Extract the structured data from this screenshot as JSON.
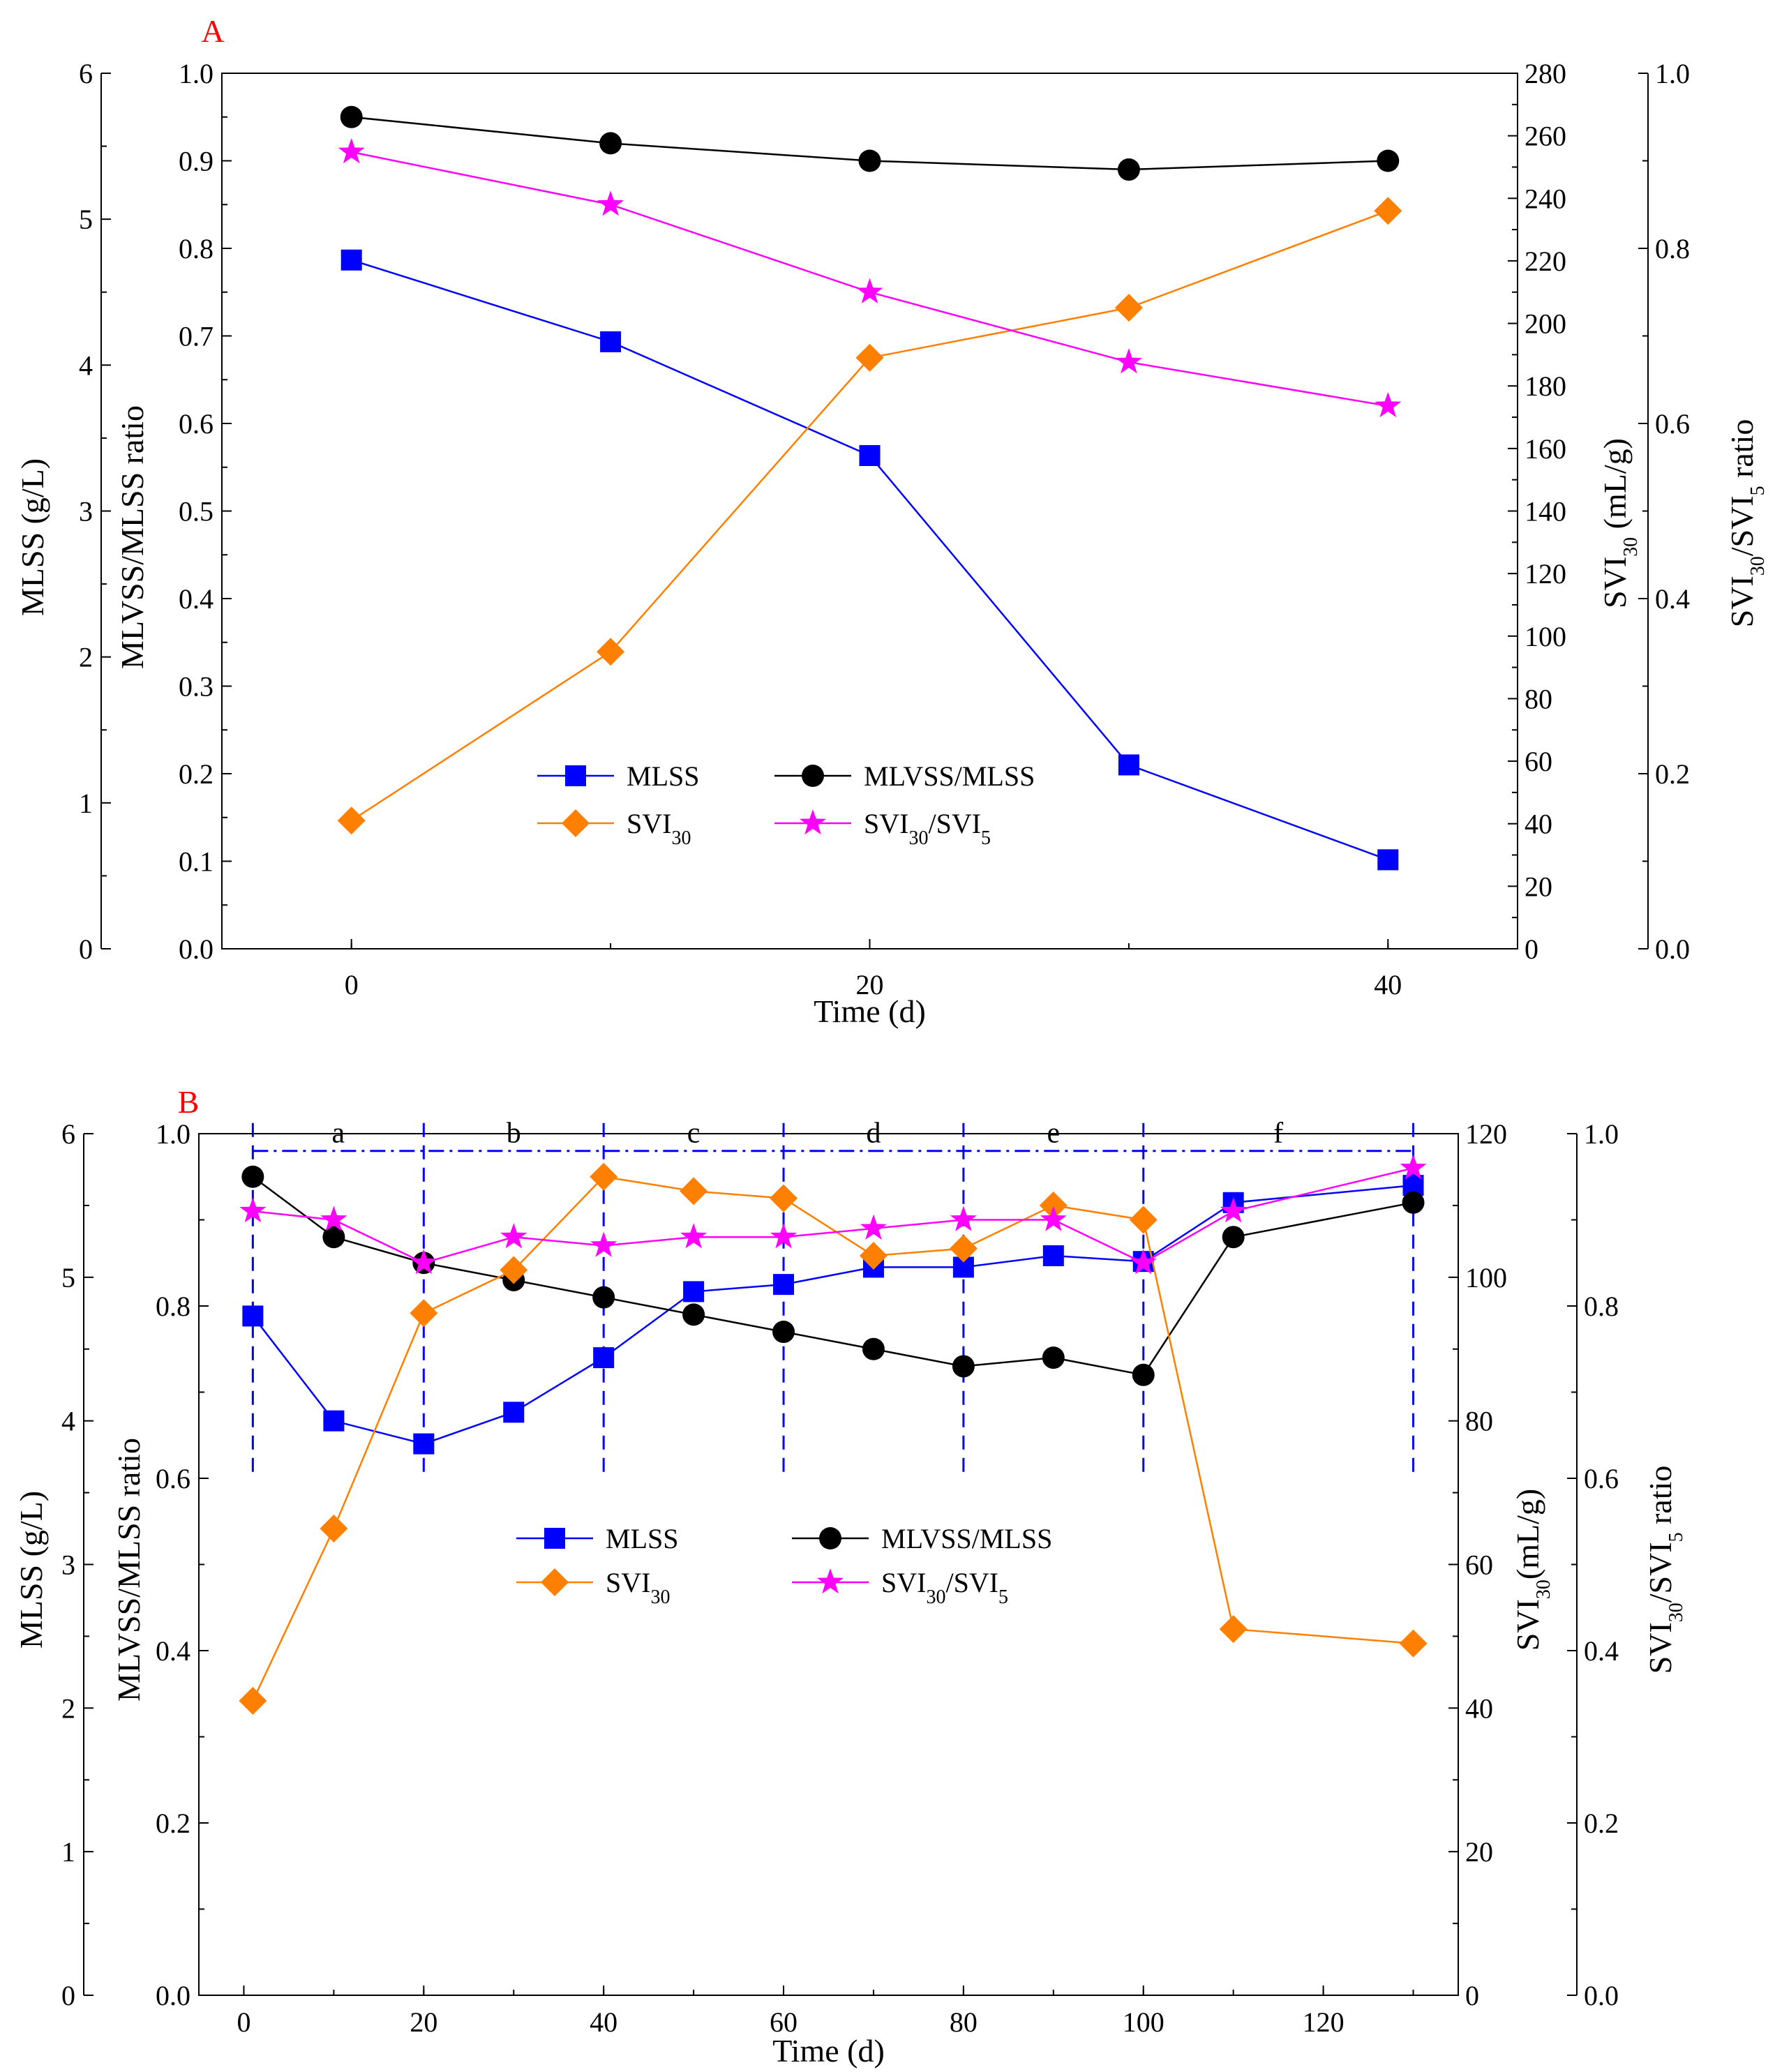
{
  "colors": {
    "mlss": "#0000ff",
    "ratio": "#000000",
    "svi": "#ff7f00",
    "svi_ratio": "#ff00ff",
    "panel_tag": "#ff0000",
    "phase_lines": "#0000ff"
  },
  "chart_data": [
    {
      "type": "line",
      "panel": "A",
      "xlabel": "Time (d)",
      "x_ticks": [
        "0",
        "20",
        "40"
      ],
      "xlim": [
        -5,
        45
      ],
      "axes": {
        "left1": {
          "label": "MLSS (g/L)",
          "lim": [
            0,
            6
          ],
          "ticks": [
            "0",
            "1",
            "2",
            "3",
            "4",
            "5",
            "6"
          ]
        },
        "left2": {
          "label": "MLVSS/MLSS ratio",
          "lim": [
            0,
            1
          ],
          "ticks": [
            "0.0",
            "0.1",
            "0.2",
            "0.3",
            "0.4",
            "0.5",
            "0.6",
            "0.7",
            "0.8",
            "0.9",
            "1.0"
          ]
        },
        "right1": {
          "label_main": "SVI",
          "label_sub": "30",
          "label_tail": " (mL/g)",
          "lim": [
            0,
            280
          ],
          "ticks": [
            "0",
            "20",
            "40",
            "60",
            "80",
            "100",
            "120",
            "140",
            "160",
            "180",
            "200",
            "220",
            "240",
            "260",
            "280"
          ]
        },
        "right2": {
          "label_main": "SVI",
          "label_sub1": "30",
          "label_mid": "/SVI",
          "label_sub2": "5",
          "label_tail": " ratio",
          "lim": [
            0,
            1
          ],
          "ticks": [
            "0.0",
            "0.2",
            "0.4",
            "0.6",
            "0.8",
            "1.0"
          ]
        }
      },
      "series": [
        {
          "name": "MLSS",
          "key": "mlss",
          "axis": "left1",
          "marker": "square",
          "x": [
            0,
            10,
            20,
            30,
            40
          ],
          "values": [
            4.72,
            4.16,
            3.38,
            1.26,
            0.61
          ]
        },
        {
          "name": "MLVSS/MLSS",
          "key": "ratio",
          "axis": "left2",
          "marker": "circle",
          "x": [
            0,
            10,
            20,
            30,
            40
          ],
          "values": [
            0.95,
            0.92,
            0.9,
            0.89,
            0.9
          ]
        },
        {
          "name": "SVI",
          "sub": "30",
          "key": "svi",
          "axis": "right1",
          "marker": "diamond",
          "x": [
            0,
            10,
            20,
            30,
            40
          ],
          "values": [
            41,
            95,
            189,
            205,
            236
          ]
        },
        {
          "name": "SVI",
          "sub": "30",
          "name2": "/SVI",
          "sub2": "5",
          "key": "svi_ratio",
          "axis": "right2",
          "marker": "star",
          "x": [
            0,
            10,
            20,
            30,
            40
          ],
          "values": [
            0.91,
            0.85,
            0.75,
            0.67,
            0.62
          ]
        }
      ]
    },
    {
      "type": "line",
      "panel": "B",
      "xlabel": "Time (d)",
      "x_ticks": [
        "0",
        "20",
        "40",
        "60",
        "80",
        "100",
        "120"
      ],
      "xlim": [
        -5,
        135
      ],
      "axes": {
        "left1": {
          "label": "MLSS (g/L)",
          "lim": [
            0,
            6
          ],
          "ticks": [
            "0",
            "1",
            "2",
            "3",
            "4",
            "5",
            "6"
          ]
        },
        "left2": {
          "label": "MLVSS/MLSS ratio",
          "lim": [
            0,
            1
          ],
          "ticks": [
            "0.0",
            "0.2",
            "0.4",
            "0.6",
            "0.8",
            "1.0"
          ]
        },
        "right1": {
          "label_main": "SVI",
          "label_sub": "30",
          "label_tail": "(mL/g)",
          "lim": [
            0,
            120
          ],
          "ticks": [
            "0",
            "20",
            "40",
            "60",
            "80",
            "100",
            "120"
          ]
        },
        "right2": {
          "label_main": "SVI",
          "label_sub1": "30",
          "label_mid": "/SVI",
          "label_sub2": "5",
          "label_tail": " ratio",
          "lim": [
            0,
            1
          ],
          "ticks": [
            "0.0",
            "0.2",
            "0.4",
            "0.6",
            "0.8",
            "1.0"
          ]
        }
      },
      "phases": {
        "boundaries": [
          1,
          20,
          40,
          60,
          80,
          100,
          130
        ],
        "labels": [
          "a",
          "b",
          "c",
          "d",
          "e",
          "f"
        ],
        "y_top": 0.98,
        "y_bottom": 0.6
      },
      "series": [
        {
          "name": "MLSS",
          "key": "mlss",
          "axis": "left1",
          "marker": "square",
          "x": [
            1,
            10,
            20,
            30,
            40,
            50,
            60,
            70,
            80,
            90,
            100,
            110,
            130
          ],
          "values": [
            4.73,
            4.0,
            3.84,
            4.06,
            4.44,
            4.9,
            4.95,
            5.07,
            5.07,
            5.15,
            5.11,
            5.52,
            5.64
          ]
        },
        {
          "name": "MLVSS/MLSS",
          "key": "ratio",
          "axis": "left2",
          "marker": "circle",
          "x": [
            1,
            10,
            20,
            30,
            40,
            50,
            60,
            70,
            80,
            90,
            100,
            110,
            130
          ],
          "values": [
            0.95,
            0.88,
            0.85,
            0.83,
            0.81,
            0.79,
            0.77,
            0.75,
            0.73,
            0.74,
            0.72,
            0.88,
            0.92
          ]
        },
        {
          "name": "SVI",
          "sub": "30",
          "key": "svi",
          "axis": "right1",
          "marker": "diamond",
          "x": [
            1,
            10,
            20,
            30,
            40,
            50,
            60,
            70,
            80,
            90,
            100,
            110,
            130
          ],
          "values": [
            41,
            65,
            95,
            101,
            114,
            112,
            111,
            103,
            104,
            110,
            108,
            51,
            49
          ]
        },
        {
          "name": "SVI",
          "sub": "30",
          "name2": "/SVI",
          "sub2": "5",
          "key": "svi_ratio",
          "axis": "right2",
          "marker": "star",
          "x": [
            1,
            10,
            20,
            30,
            40,
            50,
            60,
            70,
            80,
            90,
            100,
            110,
            130
          ],
          "values": [
            0.91,
            0.9,
            0.85,
            0.88,
            0.87,
            0.88,
            0.88,
            0.89,
            0.9,
            0.9,
            0.85,
            0.91,
            0.96
          ]
        }
      ]
    }
  ]
}
